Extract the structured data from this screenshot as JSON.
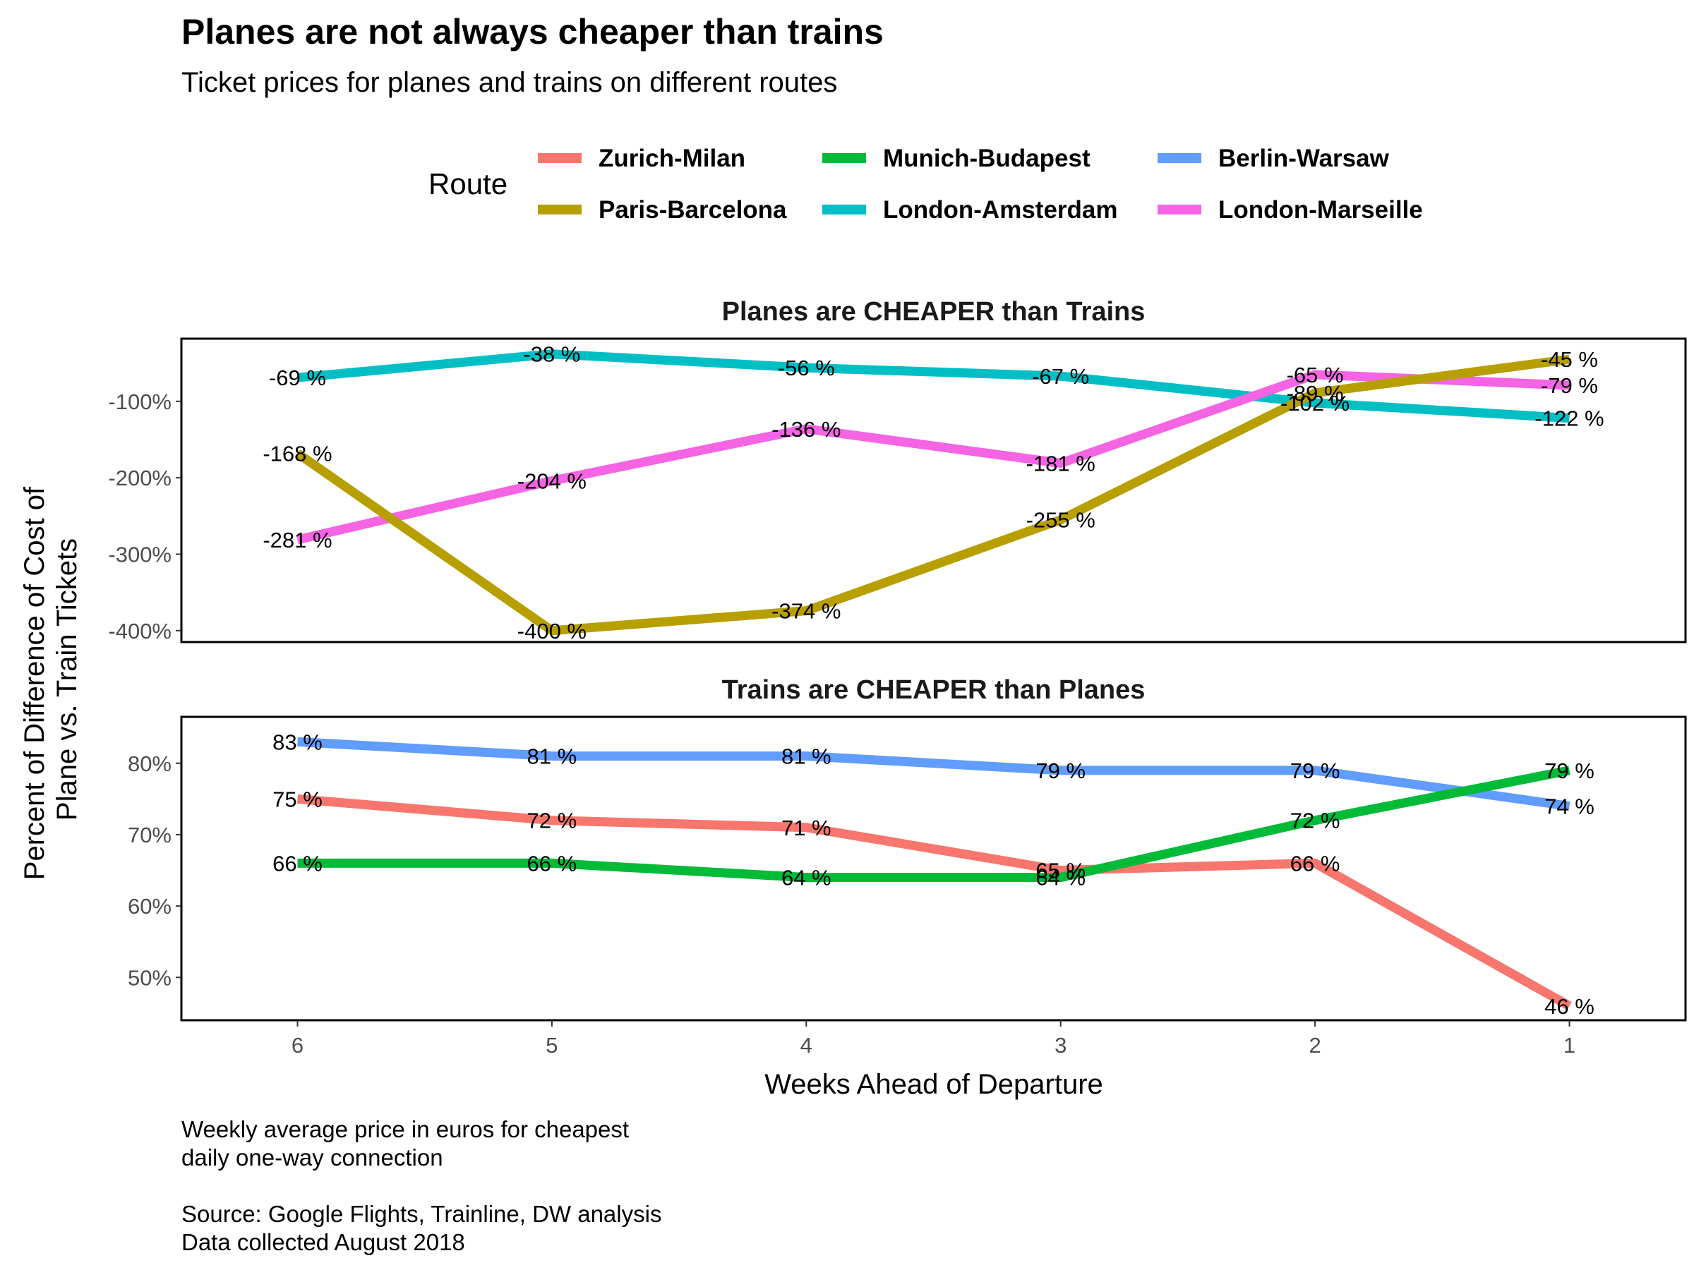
{
  "title": "Planes are not always cheaper than trains",
  "subtitle": "Ticket prices for planes and trains on different routes",
  "legend": {
    "title": "Route",
    "items": [
      {
        "label": "Zurich-Milan",
        "color": "#F8766D"
      },
      {
        "label": "Munich-Budapest",
        "color": "#00BA38"
      },
      {
        "label": "Berlin-Warsaw",
        "color": "#619CFF"
      },
      {
        "label": "Paris-Barcelona",
        "color": "#B79F00"
      },
      {
        "label": "London-Amsterdam",
        "color": "#00BFC4"
      },
      {
        "label": "London-Marseille",
        "color": "#F564E3"
      }
    ]
  },
  "caption": [
    "Weekly average price in euros for cheapest",
    "daily one-way connection",
    "",
    "Source: Google Flights, Trainline, DW analysis",
    "Data collected August 2018"
  ],
  "chart_data": {
    "type": "line",
    "x": [
      6,
      5,
      4,
      3,
      2,
      1
    ],
    "x_ticks": [
      "6",
      "5",
      "4",
      "3",
      "2",
      "1"
    ],
    "xlabel": "Weeks Ahead of Departure",
    "ylabel": [
      "Percent of Difference of Cost of",
      "Plane vs. Train Tickets"
    ],
    "x_reversed": true,
    "grid": false,
    "legend_position": "top",
    "facets": [
      {
        "title": "Planes are CHEAPER than Trains",
        "ylim": [
          -415,
          -18
        ],
        "y_ticks": [
          -100,
          -200,
          -300,
          -400
        ],
        "y_tick_labels": [
          "-100%",
          "-200%",
          "-300%",
          "-400%"
        ],
        "series": [
          {
            "name": "London-Amsterdam",
            "color": "#00BFC4",
            "values": [
              -69,
              -38,
              -56,
              -67,
              -102,
              -122
            ],
            "labels": [
              "-69 %",
              "-38 %",
              "-56 %",
              "-67 %",
              "-102 %",
              "-122 %"
            ]
          },
          {
            "name": "London-Marseille",
            "color": "#F564E3",
            "values": [
              -281,
              -204,
              -136,
              -181,
              -65,
              -79
            ],
            "labels": [
              "-281 %",
              "-204 %",
              "-136 %",
              "-181 %",
              "-65 %",
              "-79 %"
            ]
          },
          {
            "name": "Paris-Barcelona",
            "color": "#B79F00",
            "values": [
              -168,
              -400,
              -374,
              -255,
              -89,
              -45
            ],
            "labels": [
              "-168 %",
              "-400 %",
              "-374 %",
              "-255 %",
              "-89 %",
              "-45 %"
            ]
          }
        ]
      },
      {
        "title": "Trains are CHEAPER than Planes",
        "ylim": [
          44,
          86.5
        ],
        "y_ticks": [
          80,
          70,
          60,
          50
        ],
        "y_tick_labels": [
          "80%",
          "70%",
          "60%",
          "50%"
        ],
        "series": [
          {
            "name": "Berlin-Warsaw",
            "color": "#619CFF",
            "values": [
              83,
              81,
              81,
              79,
              79,
              74
            ],
            "labels": [
              "83 %",
              "81 %",
              "81 %",
              "79 %",
              "79 %",
              "74 %"
            ]
          },
          {
            "name": "Zurich-Milan",
            "color": "#F8766D",
            "values": [
              75,
              72,
              71,
              65,
              66,
              46
            ],
            "labels": [
              "75 %",
              "72 %",
              "71 %",
              "65 %",
              "66 %",
              "46 %"
            ]
          },
          {
            "name": "Munich-Budapest",
            "color": "#00BA38",
            "values": [
              66,
              66,
              64,
              64,
              72,
              79
            ],
            "labels": [
              "66 %",
              "66 %",
              "64 %",
              "64 %",
              "72 %",
              "79 %"
            ]
          }
        ]
      }
    ]
  }
}
